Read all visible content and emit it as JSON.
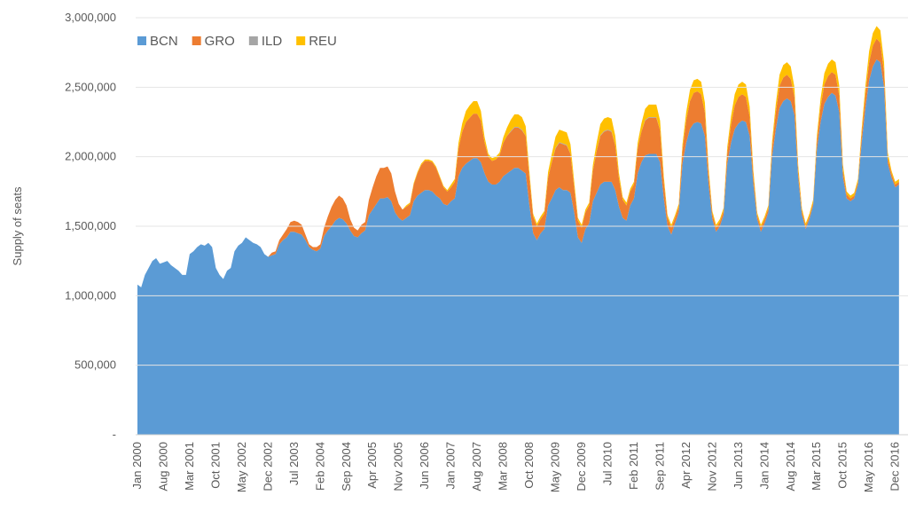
{
  "chart_data": {
    "type": "stacked-area",
    "y_label": "Supply of seats",
    "ylim": [
      0,
      3000000
    ],
    "yticks": [
      {
        "value": 0,
        "label": "-"
      },
      {
        "value": 500000,
        "label": "500,000"
      },
      {
        "value": 1000000,
        "label": "1,000,000"
      },
      {
        "value": 1500000,
        "label": "1,500,000"
      },
      {
        "value": 2000000,
        "label": "2,000,000"
      },
      {
        "value": 2500000,
        "label": "2,500,000"
      },
      {
        "value": 3000000,
        "label": "3,000,000"
      }
    ],
    "grid": true,
    "legend": "top-left",
    "categories": [
      "Jan 2000",
      null,
      null,
      null,
      null,
      null,
      null,
      "Aug 2000",
      null,
      null,
      null,
      null,
      null,
      null,
      "Mar 2001",
      null,
      null,
      null,
      null,
      null,
      null,
      "Oct 2001",
      null,
      null,
      null,
      null,
      null,
      null,
      "May 2002",
      null,
      null,
      null,
      null,
      null,
      null,
      "Dec 2002",
      null,
      null,
      null,
      null,
      null,
      null,
      "Jul 2003",
      null,
      null,
      null,
      null,
      null,
      null,
      "Feb 2004",
      null,
      null,
      null,
      null,
      null,
      null,
      "Sep 2004",
      null,
      null,
      null,
      null,
      null,
      null,
      "Apr 2005",
      null,
      null,
      null,
      null,
      null,
      null,
      "Nov 2005",
      null,
      null,
      null,
      null,
      null,
      null,
      "Jun 2006",
      null,
      null,
      null,
      null,
      null,
      null,
      "Jan 2007",
      null,
      null,
      null,
      null,
      null,
      null,
      "Aug 2007",
      null,
      null,
      null,
      null,
      null,
      null,
      "Mar 2008",
      null,
      null,
      null,
      null,
      null,
      null,
      "Oct 2008",
      null,
      null,
      null,
      null,
      null,
      null,
      "May 2009",
      null,
      null,
      null,
      null,
      null,
      null,
      "Dec 2009",
      null,
      null,
      null,
      null,
      null,
      null,
      "Jul 2010",
      null,
      null,
      null,
      null,
      null,
      null,
      "Feb 2011",
      null,
      null,
      null,
      null,
      null,
      null,
      "Sep 2011",
      null,
      null,
      null,
      null,
      null,
      null,
      "Apr 2012",
      null,
      null,
      null,
      null,
      null,
      null,
      "Nov 2012",
      null,
      null,
      null,
      null,
      null,
      null,
      "Jun 2013",
      null,
      null,
      null,
      null,
      null,
      null,
      "Jan 2014",
      null,
      null,
      null,
      null,
      null,
      null,
      "Aug 2014",
      null,
      null,
      null,
      null,
      null,
      null,
      "Mar 2015",
      null,
      null,
      null,
      null,
      null,
      null,
      "Oct 2015",
      null,
      null,
      null,
      null,
      null,
      null,
      "May 2016",
      null,
      null,
      null,
      null,
      null,
      null,
      "Dec 2016",
      null
    ],
    "series": [
      {
        "name": "BCN",
        "color": "#5b9bd5",
        "values": [
          1080000,
          1060000,
          1150000,
          1200000,
          1250000,
          1270000,
          1230000,
          1240000,
          1250000,
          1220000,
          1200000,
          1180000,
          1150000,
          1150000,
          1300000,
          1320000,
          1350000,
          1370000,
          1360000,
          1380000,
          1350000,
          1200000,
          1150000,
          1120000,
          1180000,
          1200000,
          1320000,
          1360000,
          1380000,
          1420000,
          1400000,
          1380000,
          1370000,
          1350000,
          1300000,
          1280000,
          1290000,
          1300000,
          1370000,
          1400000,
          1420000,
          1460000,
          1460000,
          1450000,
          1440000,
          1400000,
          1350000,
          1330000,
          1320000,
          1340000,
          1430000,
          1470000,
          1500000,
          1540000,
          1560000,
          1550000,
          1520000,
          1470000,
          1430000,
          1420000,
          1450000,
          1470000,
          1580000,
          1620000,
          1660000,
          1700000,
          1700000,
          1710000,
          1680000,
          1600000,
          1560000,
          1540000,
          1560000,
          1580000,
          1680000,
          1720000,
          1740000,
          1760000,
          1760000,
          1750000,
          1720000,
          1700000,
          1660000,
          1650000,
          1680000,
          1700000,
          1860000,
          1920000,
          1950000,
          1970000,
          1990000,
          1990000,
          1960000,
          1880000,
          1820000,
          1800000,
          1800000,
          1820000,
          1860000,
          1880000,
          1900000,
          1920000,
          1920000,
          1900000,
          1880000,
          1650000,
          1450000,
          1400000,
          1450000,
          1480000,
          1650000,
          1700000,
          1760000,
          1780000,
          1760000,
          1760000,
          1740000,
          1600000,
          1420000,
          1380000,
          1480000,
          1520000,
          1680000,
          1740000,
          1800000,
          1820000,
          1820000,
          1820000,
          1760000,
          1640000,
          1560000,
          1540000,
          1650000,
          1700000,
          1880000,
          1960000,
          2010000,
          2020000,
          2020000,
          2020000,
          1960000,
          1700000,
          1500000,
          1440000,
          1520000,
          1600000,
          1950000,
          2100000,
          2200000,
          2240000,
          2250000,
          2240000,
          2150000,
          1800000,
          1550000,
          1460000,
          1500000,
          1580000,
          1950000,
          2100000,
          2200000,
          2240000,
          2260000,
          2250000,
          2150000,
          1800000,
          1550000,
          1460000,
          1520000,
          1600000,
          2000000,
          2200000,
          2350000,
          2400000,
          2420000,
          2400000,
          2300000,
          1850000,
          1580000,
          1480000,
          1550000,
          1650000,
          2050000,
          2250000,
          2380000,
          2430000,
          2460000,
          2440000,
          2320000,
          1850000,
          1700000,
          1680000,
          1700000,
          1800000,
          2100000,
          2350000,
          2550000,
          2650000,
          2700000,
          2680000,
          2500000,
          1950000,
          1850000,
          1780000,
          1800000
        ]
      },
      {
        "name": "GRO",
        "color": "#ed7d31",
        "values": [
          0,
          0,
          0,
          0,
          0,
          0,
          0,
          0,
          0,
          0,
          0,
          0,
          0,
          0,
          0,
          0,
          0,
          0,
          0,
          0,
          0,
          0,
          0,
          0,
          0,
          0,
          0,
          0,
          0,
          0,
          0,
          0,
          0,
          0,
          0,
          0,
          20000,
          20000,
          30000,
          40000,
          60000,
          70000,
          80000,
          80000,
          70000,
          40000,
          20000,
          20000,
          30000,
          30000,
          60000,
          100000,
          140000,
          150000,
          160000,
          150000,
          130000,
          80000,
          60000,
          50000,
          60000,
          60000,
          110000,
          160000,
          200000,
          220000,
          220000,
          220000,
          200000,
          150000,
          100000,
          80000,
          80000,
          80000,
          120000,
          160000,
          200000,
          210000,
          210000,
          210000,
          200000,
          150000,
          120000,
          100000,
          100000,
          120000,
          200000,
          260000,
          300000,
          310000,
          320000,
          320000,
          300000,
          220000,
          180000,
          170000,
          180000,
          190000,
          240000,
          270000,
          280000,
          290000,
          290000,
          290000,
          270000,
          200000,
          120000,
          100000,
          100000,
          110000,
          200000,
          260000,
          300000,
          320000,
          330000,
          320000,
          280000,
          180000,
          120000,
          110000,
          120000,
          130000,
          220000,
          300000,
          350000,
          360000,
          370000,
          360000,
          320000,
          200000,
          130000,
          110000,
          100000,
          100000,
          180000,
          220000,
          250000,
          260000,
          260000,
          260000,
          230000,
          120000,
          60000,
          50000,
          40000,
          40000,
          100000,
          160000,
          200000,
          220000,
          220000,
          210000,
          170000,
          80000,
          40000,
          30000,
          30000,
          30000,
          80000,
          130000,
          170000,
          190000,
          190000,
          180000,
          140000,
          60000,
          30000,
          30000,
          30000,
          30000,
          70000,
          120000,
          160000,
          170000,
          170000,
          160000,
          130000,
          50000,
          30000,
          20000,
          20000,
          20000,
          60000,
          110000,
          140000,
          150000,
          150000,
          150000,
          120000,
          50000,
          30000,
          20000,
          20000,
          20000,
          60000,
          100000,
          130000,
          150000,
          150000,
          140000,
          110000,
          40000,
          30000,
          20000,
          20000
        ]
      },
      {
        "name": "ILD",
        "color": "#a5a5a5",
        "values": [
          0,
          0,
          0,
          0,
          0,
          0,
          0,
          0,
          0,
          0,
          0,
          0,
          0,
          0,
          0,
          0,
          0,
          0,
          0,
          0,
          0,
          0,
          0,
          0,
          0,
          0,
          0,
          0,
          0,
          0,
          0,
          0,
          0,
          0,
          0,
          0,
          0,
          0,
          0,
          0,
          0,
          0,
          0,
          0,
          0,
          0,
          0,
          0,
          0,
          0,
          0,
          0,
          0,
          0,
          0,
          0,
          0,
          0,
          0,
          0,
          0,
          0,
          0,
          0,
          0,
          0,
          0,
          0,
          0,
          0,
          0,
          0,
          0,
          0,
          0,
          0,
          0,
          0,
          0,
          0,
          0,
          0,
          0,
          0,
          0,
          0,
          0,
          0,
          0,
          0,
          0,
          0,
          0,
          0,
          0,
          0,
          0,
          0,
          0,
          0,
          5000,
          5000,
          5000,
          5000,
          0,
          0,
          0,
          0,
          0,
          0,
          0,
          0,
          5000,
          5000,
          5000,
          5000,
          0,
          0,
          0,
          0,
          0,
          0,
          0,
          0,
          5000,
          5000,
          5000,
          5000,
          0,
          0,
          0,
          0,
          0,
          0,
          0,
          0,
          5000,
          5000,
          5000,
          5000,
          0,
          0,
          0,
          0,
          0,
          0,
          0,
          0,
          0,
          0,
          0,
          0,
          0,
          0,
          0,
          0,
          0,
          0,
          0,
          0,
          0,
          0,
          0,
          0,
          0,
          0,
          0,
          0,
          0,
          0,
          0,
          0,
          0,
          0,
          0,
          0,
          0,
          0,
          0,
          0,
          0,
          0,
          0,
          0,
          0,
          0,
          0,
          0,
          0,
          0,
          0,
          0,
          0,
          0,
          0,
          0,
          0,
          0,
          0,
          0,
          0,
          0,
          0,
          0,
          0
        ]
      },
      {
        "name": "REU",
        "color": "#ffc000",
        "values": [
          0,
          0,
          0,
          0,
          0,
          0,
          0,
          0,
          0,
          0,
          0,
          0,
          0,
          0,
          0,
          0,
          0,
          0,
          0,
          0,
          0,
          0,
          0,
          0,
          0,
          0,
          0,
          0,
          0,
          0,
          0,
          0,
          0,
          0,
          0,
          0,
          0,
          0,
          0,
          0,
          0,
          0,
          0,
          0,
          0,
          0,
          0,
          0,
          0,
          0,
          0,
          0,
          0,
          0,
          0,
          0,
          0,
          0,
          0,
          0,
          0,
          0,
          0,
          0,
          0,
          0,
          0,
          0,
          0,
          0,
          0,
          0,
          10000,
          10000,
          10000,
          10000,
          10000,
          10000,
          10000,
          10000,
          10000,
          10000,
          10000,
          10000,
          20000,
          20000,
          40000,
          60000,
          80000,
          90000,
          90000,
          90000,
          70000,
          40000,
          20000,
          20000,
          20000,
          20000,
          40000,
          60000,
          80000,
          90000,
          90000,
          90000,
          70000,
          40000,
          20000,
          20000,
          20000,
          20000,
          40000,
          60000,
          80000,
          90000,
          90000,
          90000,
          70000,
          40000,
          20000,
          20000,
          20000,
          20000,
          40000,
          60000,
          80000,
          90000,
          90000,
          90000,
          70000,
          40000,
          20000,
          20000,
          20000,
          20000,
          40000,
          60000,
          80000,
          90000,
          90000,
          90000,
          70000,
          40000,
          20000,
          20000,
          20000,
          20000,
          40000,
          60000,
          80000,
          90000,
          90000,
          90000,
          70000,
          40000,
          20000,
          20000,
          20000,
          20000,
          40000,
          60000,
          80000,
          90000,
          90000,
          90000,
          70000,
          40000,
          20000,
          20000,
          20000,
          20000,
          40000,
          60000,
          80000,
          90000,
          90000,
          90000,
          70000,
          40000,
          20000,
          20000,
          20000,
          20000,
          40000,
          60000,
          80000,
          90000,
          90000,
          90000,
          70000,
          40000,
          20000,
          20000,
          20000,
          20000,
          40000,
          60000,
          80000,
          90000,
          90000,
          90000,
          70000,
          40000,
          20000,
          20000,
          20000
        ]
      }
    ]
  }
}
